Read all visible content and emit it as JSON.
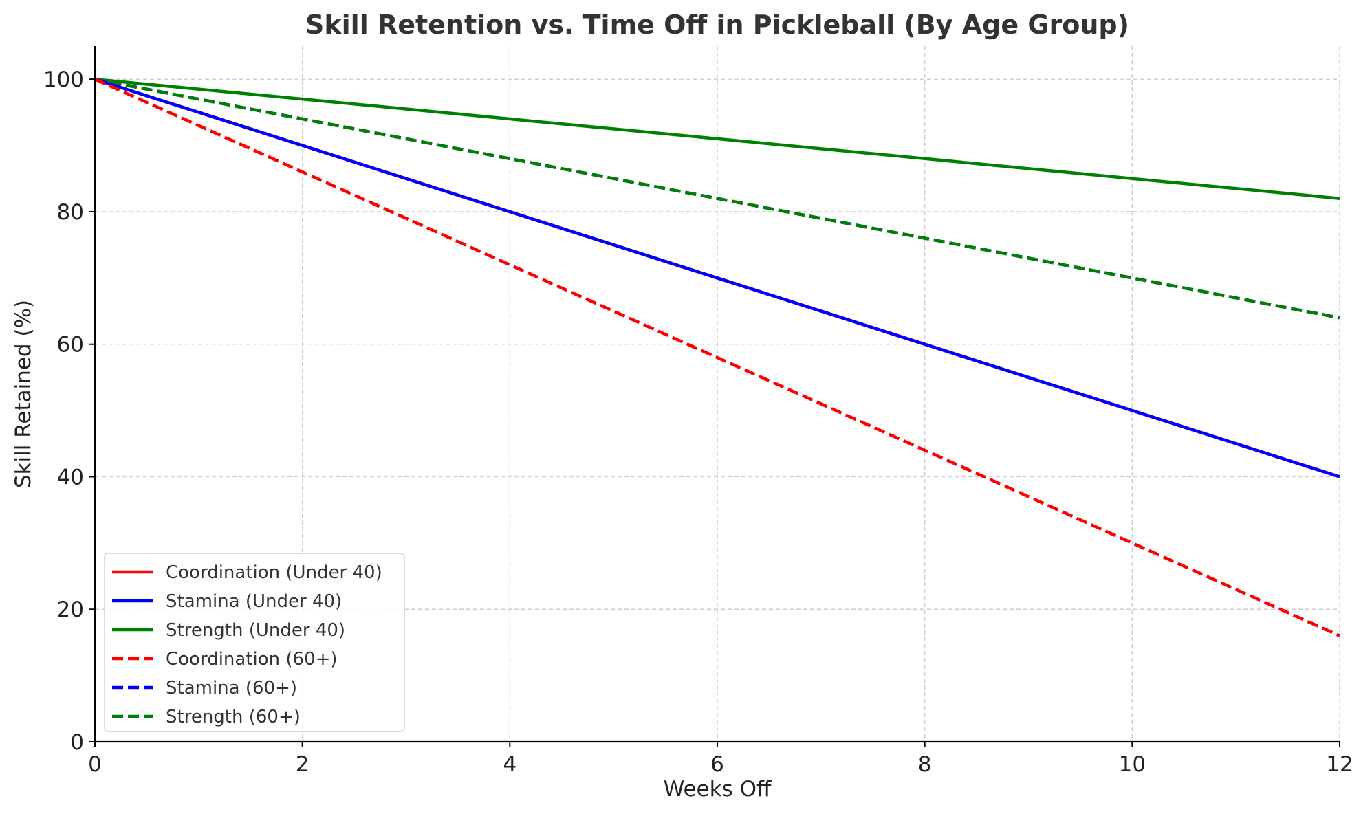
{
  "chart_data": {
    "type": "line",
    "title": "Skill Retention vs. Time Off in Pickleball (By Age Group)",
    "xlabel": "Weeks Off",
    "ylabel": "Skill Retained (%)",
    "xlim": [
      0,
      12
    ],
    "ylim": [
      0,
      105
    ],
    "x_ticks": [
      0,
      2,
      4,
      6,
      8,
      10,
      12
    ],
    "y_ticks": [
      0,
      20,
      40,
      60,
      80,
      100
    ],
    "grid": true,
    "legend_position": "lower-left",
    "x": [
      0,
      2,
      4,
      6,
      8,
      10,
      12
    ],
    "series": [
      {
        "name": "Coordination (Under 40)",
        "color": "#ff0000",
        "style": "solid",
        "values": [
          100,
          90,
          80,
          70,
          60,
          50,
          40
        ]
      },
      {
        "name": "Stamina (Under 40)",
        "color": "#0000ff",
        "style": "solid",
        "values": [
          100,
          90,
          80,
          70,
          60,
          50,
          40
        ]
      },
      {
        "name": "Strength (Under 40)",
        "color": "#008000",
        "style": "solid",
        "values": [
          100,
          97,
          94,
          91,
          88,
          85,
          82
        ]
      },
      {
        "name": "Coordination (60+)",
        "color": "#ff0000",
        "style": "dashed",
        "values": [
          100,
          86,
          72,
          58,
          44,
          30,
          16
        ]
      },
      {
        "name": "Stamina (60+)",
        "color": "#0000ff",
        "style": "dashed",
        "values": [
          100,
          94,
          88,
          82,
          76,
          70,
          64
        ]
      },
      {
        "name": "Strength (60+)",
        "color": "#008000",
        "style": "dashed",
        "values": [
          100,
          94,
          88,
          82,
          76,
          70,
          64
        ]
      }
    ]
  }
}
